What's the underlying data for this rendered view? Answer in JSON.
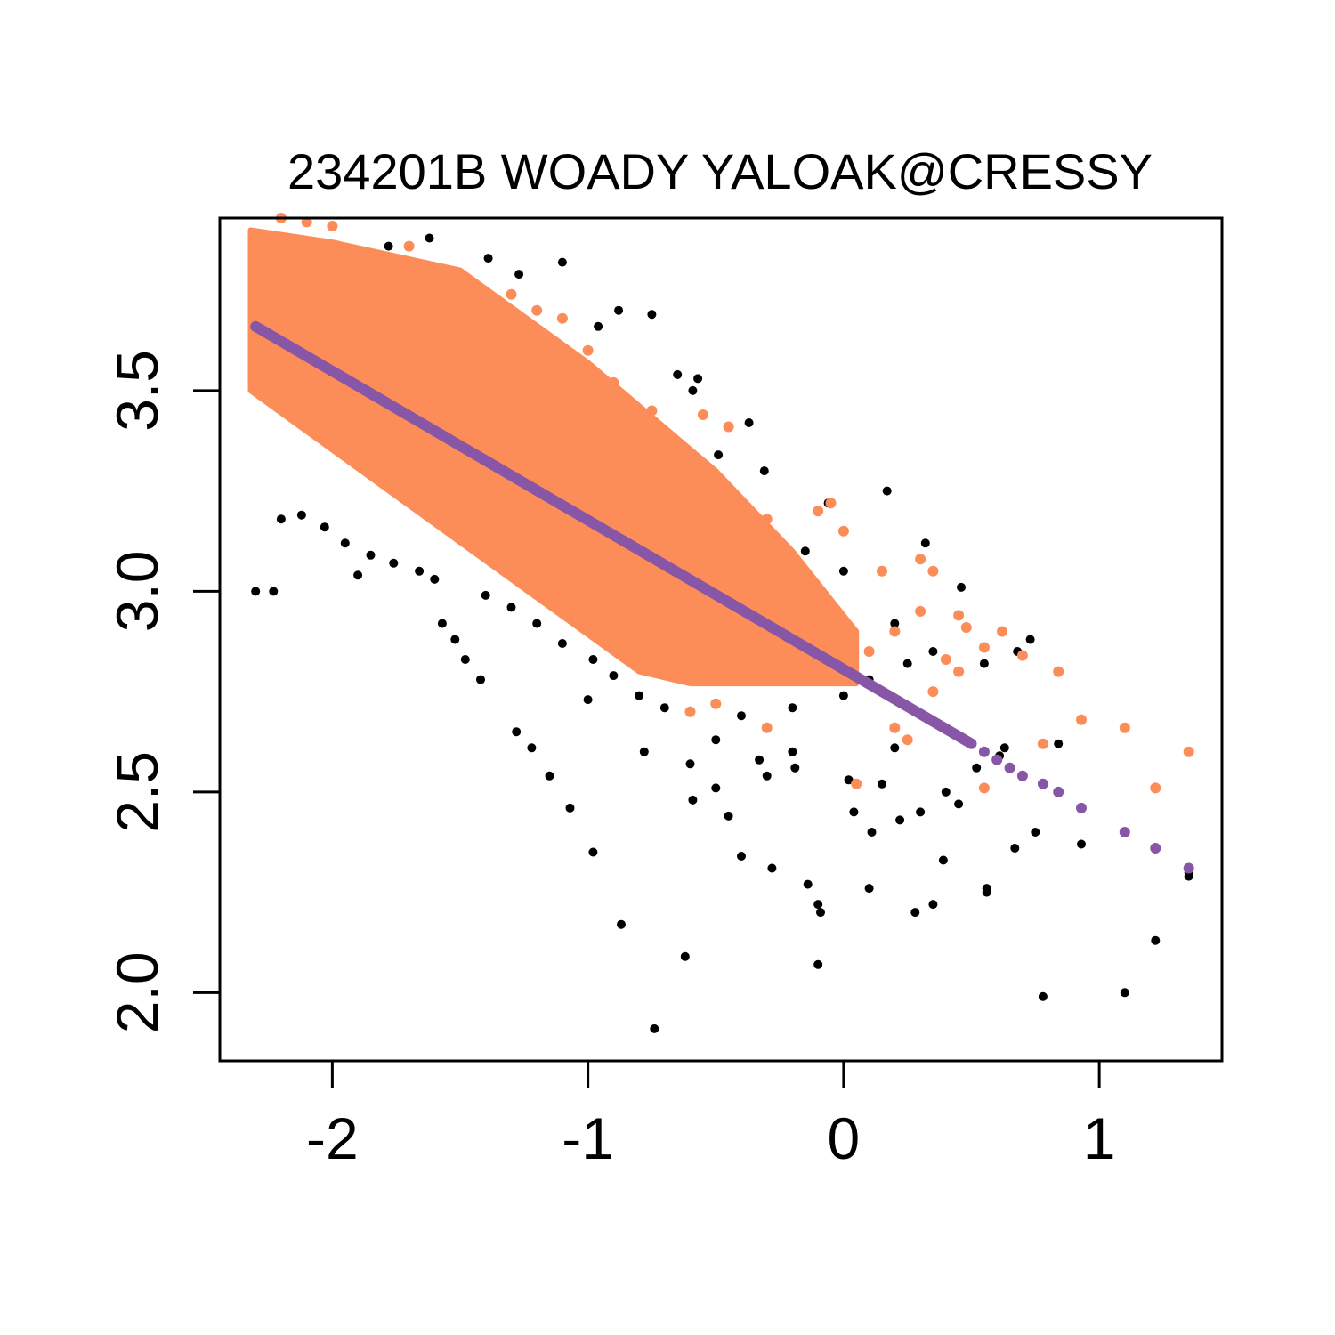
{
  "chart_data": {
    "type": "scatter",
    "title": "234201B WOADY YALOAK@CRESSY",
    "xlabel": "",
    "ylabel": "",
    "xlim": [
      -2.44,
      1.48
    ],
    "ylim": [
      1.83,
      3.93
    ],
    "x_ticks": [
      -2,
      -1,
      0,
      1
    ],
    "y_ticks": [
      2.0,
      2.5,
      3.0,
      3.5
    ],
    "x_tick_labels": [
      "-2",
      "-1",
      "0",
      "1"
    ],
    "y_tick_labels": [
      "2.0",
      "2.5",
      "3.0",
      "3.5"
    ],
    "grid": false,
    "legend": "none",
    "colors": {
      "observed": "#000000",
      "simulated": "#FC8D59",
      "fit": "#8856A7"
    },
    "series": [
      {
        "role": "observed",
        "color": "#000000",
        "points": [
          [
            -2.3,
            3.0
          ],
          [
            -2.23,
            3.0
          ],
          [
            -1.9,
            3.04
          ],
          [
            -1.57,
            2.92
          ],
          [
            -1.52,
            2.88
          ],
          [
            -1.48,
            2.83
          ],
          [
            -1.42,
            2.78
          ],
          [
            -1.28,
            2.65
          ],
          [
            -1.22,
            2.61
          ],
          [
            -1.15,
            2.54
          ],
          [
            -1.07,
            2.46
          ],
          [
            -0.98,
            2.35
          ],
          [
            -0.87,
            2.17
          ],
          [
            -0.62,
            2.09
          ],
          [
            -0.74,
            1.91
          ],
          [
            -0.1,
            2.07
          ],
          [
            -0.14,
            2.27
          ],
          [
            -0.1,
            2.22
          ],
          [
            -0.09,
            2.2
          ],
          [
            0.1,
            2.26
          ],
          [
            0.22,
            2.43
          ],
          [
            0.28,
            2.2
          ],
          [
            0.35,
            2.22
          ],
          [
            0.39,
            2.33
          ],
          [
            0.56,
            2.26
          ],
          [
            0.56,
            2.25
          ],
          [
            0.67,
            2.36
          ],
          [
            0.75,
            2.4
          ],
          [
            0.78,
            1.99
          ],
          [
            0.93,
            2.37
          ],
          [
            1.1,
            2.0
          ],
          [
            1.22,
            2.13
          ],
          [
            1.35,
            2.3
          ],
          [
            1.35,
            2.29
          ],
          [
            0.84,
            2.62
          ],
          [
            0.73,
            2.88
          ],
          [
            0.46,
            3.01
          ],
          [
            0.32,
            3.12
          ],
          [
            0.17,
            3.25
          ],
          [
            -0.06,
            3.22
          ],
          [
            -0.31,
            3.3
          ],
          [
            -0.49,
            3.34
          ],
          [
            -0.37,
            3.42
          ],
          [
            -0.59,
            3.5
          ],
          [
            -0.57,
            3.53
          ],
          [
            -0.65,
            3.54
          ],
          [
            -0.75,
            3.69
          ],
          [
            -0.88,
            3.7
          ],
          [
            -0.96,
            3.66
          ],
          [
            -1.1,
            3.82
          ],
          [
            -1.27,
            3.79
          ],
          [
            -1.39,
            3.83
          ],
          [
            -1.62,
            3.88
          ],
          [
            -1.78,
            3.86
          ],
          [
            -0.45,
            2.44
          ],
          [
            -0.4,
            2.34
          ],
          [
            -0.28,
            2.31
          ],
          [
            -0.5,
            2.51
          ],
          [
            -0.59,
            2.48
          ],
          [
            -0.3,
            2.54
          ],
          [
            -0.2,
            2.6
          ],
          [
            0.02,
            2.53
          ],
          [
            0.15,
            2.52
          ],
          [
            0.04,
            2.45
          ],
          [
            0.11,
            2.4
          ],
          [
            0.3,
            2.45
          ],
          [
            0.4,
            2.5
          ],
          [
            0.45,
            2.47
          ],
          [
            0.61,
            2.59
          ],
          [
            -1.0,
            2.73
          ],
          [
            -0.78,
            2.6
          ],
          [
            -0.6,
            2.57
          ],
          [
            -0.5,
            2.63
          ],
          [
            -0.33,
            2.58
          ],
          [
            -0.19,
            2.56
          ],
          [
            0.2,
            2.61
          ],
          [
            0.42,
            2.65
          ],
          [
            0.52,
            2.56
          ],
          [
            0.63,
            2.61
          ],
          [
            -2.2,
            3.18
          ],
          [
            -2.12,
            3.19
          ],
          [
            -2.03,
            3.16
          ],
          [
            -1.95,
            3.12
          ],
          [
            -1.85,
            3.09
          ],
          [
            -1.76,
            3.07
          ],
          [
            -1.66,
            3.05
          ],
          [
            -1.6,
            3.03
          ],
          [
            -1.4,
            2.99
          ],
          [
            -1.3,
            2.96
          ],
          [
            -1.2,
            2.92
          ],
          [
            -1.1,
            2.87
          ],
          [
            -0.98,
            2.83
          ],
          [
            -0.9,
            2.79
          ],
          [
            -0.8,
            2.74
          ],
          [
            -0.7,
            2.71
          ],
          [
            -0.4,
            2.69
          ],
          [
            -0.2,
            2.71
          ],
          [
            0.0,
            2.74
          ],
          [
            0.1,
            2.78
          ],
          [
            0.25,
            2.82
          ],
          [
            0.35,
            2.85
          ],
          [
            0.55,
            2.82
          ],
          [
            0.68,
            2.85
          ],
          [
            0.2,
            2.92
          ],
          [
            0.0,
            3.05
          ],
          [
            -0.15,
            3.1
          ],
          [
            -0.4,
            3.16
          ],
          [
            -0.6,
            3.22
          ],
          [
            -0.8,
            3.3
          ],
          [
            -1.0,
            3.44
          ],
          [
            -1.2,
            3.56
          ],
          [
            -1.4,
            3.66
          ],
          [
            -1.6,
            3.75
          ],
          [
            -1.8,
            3.82
          ],
          [
            -2.0,
            3.84
          ]
        ]
      },
      {
        "role": "simulated",
        "color": "#FC8D59",
        "points": [
          [
            -2.2,
            3.93
          ],
          [
            -2.1,
            3.92
          ],
          [
            -2.0,
            3.91
          ],
          [
            -1.7,
            3.86
          ],
          [
            -1.5,
            3.78
          ],
          [
            -1.3,
            3.74
          ],
          [
            -1.2,
            3.7
          ],
          [
            -1.1,
            3.68
          ],
          [
            -1.0,
            3.6
          ],
          [
            -0.9,
            3.52
          ],
          [
            -0.75,
            3.45
          ],
          [
            -0.55,
            3.44
          ],
          [
            -0.45,
            3.41
          ],
          [
            -0.55,
            3.3
          ],
          [
            -0.45,
            3.25
          ],
          [
            -0.3,
            3.18
          ],
          [
            -0.1,
            3.2
          ],
          [
            -0.05,
            3.22
          ],
          [
            0.0,
            3.15
          ],
          [
            0.15,
            3.05
          ],
          [
            0.3,
            3.08
          ],
          [
            0.35,
            3.05
          ],
          [
            0.45,
            2.94
          ],
          [
            0.48,
            2.91
          ],
          [
            0.55,
            2.86
          ],
          [
            0.62,
            2.9
          ],
          [
            0.7,
            2.84
          ],
          [
            0.84,
            2.8
          ],
          [
            1.1,
            2.66
          ],
          [
            1.35,
            2.6
          ],
          [
            1.22,
            2.51
          ],
          [
            0.93,
            2.68
          ],
          [
            0.78,
            2.62
          ],
          [
            0.55,
            2.51
          ],
          [
            0.05,
            2.52
          ],
          [
            0.2,
            2.66
          ],
          [
            0.25,
            2.63
          ],
          [
            -0.3,
            2.66
          ],
          [
            -0.5,
            2.72
          ],
          [
            -0.6,
            2.7
          ],
          [
            -0.2,
            2.78
          ],
          [
            -0.1,
            2.82
          ],
          [
            0.1,
            2.85
          ],
          [
            0.2,
            2.9
          ],
          [
            0.3,
            2.95
          ],
          [
            0.4,
            2.83
          ],
          [
            -0.2,
            2.95
          ],
          [
            -0.4,
            3.05
          ],
          [
            -0.6,
            3.12
          ],
          [
            -0.8,
            3.25
          ],
          [
            -1.0,
            3.4
          ],
          [
            -1.2,
            3.5
          ],
          [
            -1.4,
            3.56
          ],
          [
            -0.7,
            2.9
          ],
          [
            -0.5,
            2.92
          ],
          [
            -0.35,
            2.88
          ],
          [
            0.35,
            2.75
          ],
          [
            0.45,
            2.8
          ]
        ],
        "band": [
          [
            -2.32,
            3.5
          ],
          [
            -2.32,
            3.9
          ],
          [
            -2.0,
            3.87
          ],
          [
            -1.5,
            3.8
          ],
          [
            -1.0,
            3.57
          ],
          [
            -0.5,
            3.3
          ],
          [
            -0.2,
            3.1
          ],
          [
            0.05,
            2.9
          ],
          [
            0.05,
            2.77
          ],
          [
            -0.3,
            2.77
          ],
          [
            -0.6,
            2.77
          ],
          [
            -0.8,
            2.8
          ],
          [
            -1.3,
            3.03
          ],
          [
            -1.8,
            3.26
          ],
          [
            -2.32,
            3.5
          ]
        ]
      },
      {
        "role": "fit",
        "color": "#8856A7",
        "line_from": [
          -2.3,
          3.66
        ],
        "line_to": [
          0.5,
          2.62
        ],
        "points": [
          [
            0.55,
            2.6
          ],
          [
            0.6,
            2.58
          ],
          [
            0.65,
            2.56
          ],
          [
            0.7,
            2.54
          ],
          [
            0.78,
            2.52
          ],
          [
            0.84,
            2.5
          ],
          [
            0.93,
            2.46
          ],
          [
            1.1,
            2.4
          ],
          [
            1.22,
            2.36
          ],
          [
            1.35,
            2.31
          ]
        ]
      }
    ]
  }
}
